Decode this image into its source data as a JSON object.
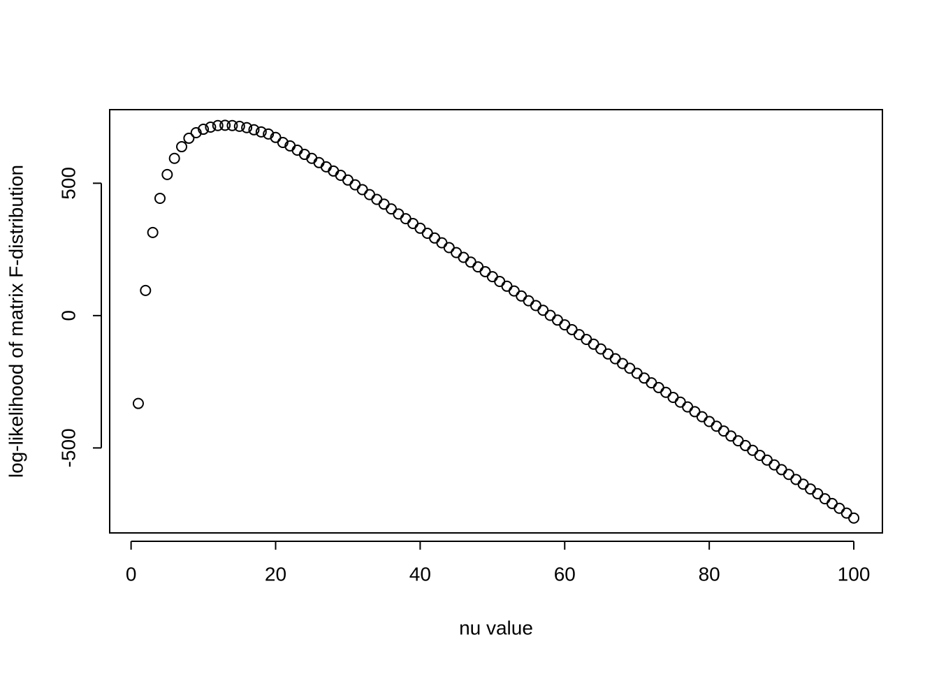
{
  "chart_data": {
    "type": "scatter",
    "xlabel": "nu value",
    "ylabel": "log-likelihood of matrix F-distribution",
    "x": [
      1,
      2,
      3,
      4,
      5,
      6,
      7,
      8,
      9,
      10,
      11,
      12,
      13,
      14,
      15,
      16,
      17,
      18,
      19,
      20,
      21,
      22,
      23,
      24,
      25,
      26,
      27,
      28,
      29,
      30,
      31,
      32,
      33,
      34,
      35,
      36,
      37,
      38,
      39,
      40,
      41,
      42,
      43,
      44,
      45,
      46,
      47,
      48,
      49,
      50,
      51,
      52,
      53,
      54,
      55,
      56,
      57,
      58,
      59,
      60,
      61,
      62,
      63,
      64,
      65,
      66,
      67,
      68,
      69,
      70,
      71,
      72,
      73,
      74,
      75,
      76,
      77,
      78,
      79,
      80,
      81,
      82,
      83,
      84,
      85,
      86,
      87,
      88,
      89,
      90,
      91,
      92,
      93,
      94,
      95,
      96,
      97,
      98,
      99,
      100
    ],
    "values": [
      -332,
      95,
      314,
      443,
      533,
      594,
      638,
      670,
      691,
      704,
      712,
      718,
      719,
      718,
      715,
      710,
      702,
      694,
      686,
      673,
      654,
      641,
      625,
      609,
      594,
      578,
      562,
      546,
      530,
      512,
      494,
      476,
      457,
      439,
      421,
      403,
      384,
      366,
      348,
      330,
      311,
      293,
      275,
      257,
      238,
      220,
      202,
      184,
      166,
      147,
      129,
      111,
      93,
      74,
      56,
      38,
      20,
      1,
      -17,
      -35,
      -53,
      -72,
      -90,
      -108,
      -126,
      -145,
      -163,
      -181,
      -199,
      -218,
      -236,
      -254,
      -272,
      -290,
      -309,
      -327,
      -345,
      -363,
      -382,
      -400,
      -418,
      -436,
      -455,
      -473,
      -491,
      -509,
      -528,
      -546,
      -564,
      -582,
      -600,
      -619,
      -637,
      -655,
      -673,
      -692,
      -710,
      -728,
      -746,
      -765
    ],
    "color": "#000000",
    "xlim": [
      -2.96,
      103.96
    ],
    "xticks": [
      0,
      20,
      40,
      60,
      80,
      100
    ],
    "ylim": [
      -821,
      778
    ],
    "yticks": [
      -500,
      0,
      500
    ]
  }
}
